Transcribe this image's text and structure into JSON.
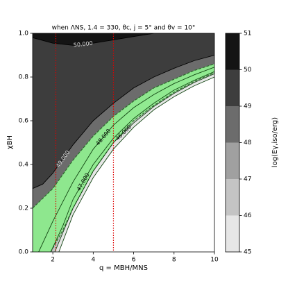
{
  "chart_data": {
    "type": "contour",
    "title": "when ΛNS, 1.4 = 330, θc, j = 5° and θv = 10°",
    "xlabel": "q = MBH/MNS",
    "ylabel": "χBH",
    "colorbar_label": "log(Eγ,iso/erg)",
    "xlim": [
      1,
      10
    ],
    "ylim": [
      0,
      1
    ],
    "xticks": [
      2,
      4,
      6,
      8,
      10
    ],
    "yticks": [
      {
        "value": 0,
        "label": "0.0"
      },
      0.2,
      0.4,
      0.6,
      0.8,
      {
        "value": 1,
        "label": "1.0"
      }
    ],
    "colorbar_lim": [
      45,
      51
    ],
    "colorbar_ticks": [
      45,
      46,
      47,
      48,
      49,
      50,
      51
    ],
    "background_color": "#ffffff",
    "levels": [
      {
        "level": 45,
        "color": "#e6e6e6",
        "label": null,
        "x": [
          2.3,
          3,
          4,
          5,
          6,
          7,
          8,
          9,
          10
        ],
        "y": [
          0,
          0.17,
          0.34,
          0.47,
          0.57,
          0.65,
          0.71,
          0.76,
          0.8
        ]
      },
      {
        "level": 46,
        "color": "#c4c4c4",
        "label": "46.000",
        "x": [
          2.1,
          3,
          4,
          5,
          6,
          7,
          8,
          9,
          10
        ],
        "y": [
          0,
          0.2,
          0.37,
          0.5,
          0.59,
          0.665,
          0.725,
          0.775,
          0.815
        ]
      },
      {
        "level": 47,
        "color": "#a0a0a0",
        "label": "47.000",
        "x": [
          1.9,
          2.5,
          3,
          4,
          5,
          6,
          7,
          8,
          9,
          10
        ],
        "y": [
          0,
          0.12,
          0.24,
          0.4,
          0.52,
          0.61,
          0.68,
          0.74,
          0.785,
          0.825
        ]
      },
      {
        "level": 48,
        "color": "#6c6c6c",
        "label": "48.000",
        "x": [
          1.3,
          2,
          3,
          4,
          5,
          6,
          7,
          8,
          9,
          10
        ],
        "y": [
          0,
          0.14,
          0.32,
          0.47,
          0.58,
          0.66,
          0.72,
          0.77,
          0.81,
          0.845
        ]
      },
      {
        "level": 49,
        "color": "#3d3d3d",
        "label": "49.000",
        "x": [
          1,
          1.5,
          2,
          3,
          4,
          5,
          6,
          7,
          8,
          9,
          10
        ],
        "y": [
          0.29,
          0.31,
          0.36,
          0.49,
          0.6,
          0.68,
          0.75,
          0.8,
          0.84,
          0.875,
          0.9
        ]
      },
      {
        "level": 50,
        "color": "#141414",
        "label": "50.000",
        "x": [
          1,
          2,
          3,
          4,
          5,
          6,
          7
        ],
        "y": [
          0.98,
          0.955,
          0.945,
          0.955,
          0.97,
          0.985,
          1
        ]
      }
    ],
    "region": {
      "color": "#90ee90",
      "line_color": "#2b6b2b",
      "upper": {
        "x": [
          1,
          2,
          3,
          4,
          5,
          6,
          7,
          8,
          9,
          10
        ],
        "y": [
          0.2,
          0.29,
          0.42,
          0.53,
          0.62,
          0.69,
          0.75,
          0.79,
          0.83,
          0.86
        ]
      },
      "lower": {
        "x": [
          1.9,
          2.5,
          3,
          4,
          5,
          6,
          7,
          8,
          9,
          10
        ],
        "y": [
          0,
          0.1,
          0.2,
          0.37,
          0.5,
          0.6,
          0.67,
          0.73,
          0.78,
          0.82
        ]
      }
    },
    "vlines": [
      2.15,
      5
    ],
    "vline_color": "#dd0000"
  }
}
